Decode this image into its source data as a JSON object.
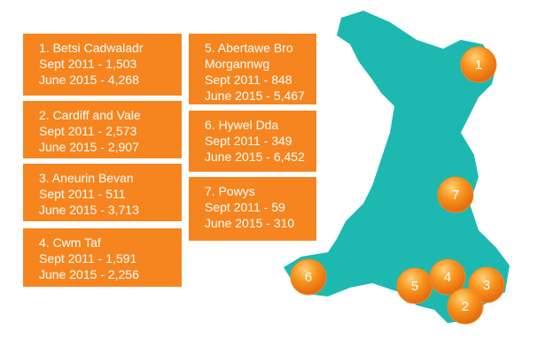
{
  "boxes": [
    {
      "lines": [
        "1. Betsi Cadwaladr",
        "Sept 2011 - 1,503",
        "June 2015 - 4,268"
      ]
    },
    {
      "lines": [
        "2. Cardiff and Vale",
        "Sept 2011 - 2,573",
        "June 2015 - 2,907"
      ]
    },
    {
      "lines": [
        "3. Aneurin Bevan",
        "Sept 2011 - 511",
        "June 2015 - 3,713"
      ]
    },
    {
      "lines": [
        "4. Cwm Taf",
        "Sept 2011 - 1,591",
        "June 2015 - 2,256"
      ]
    },
    {
      "lines": [
        "5. Abertawe Bro Morgannwg",
        "Sept 2011 - 848",
        "June 2015 - 5,467"
      ]
    },
    {
      "lines": [
        "6. Hywel Dda",
        "Sept 2011 - 349",
        "June 2015 - 6,452"
      ]
    },
    {
      "lines": [
        "7. Powys",
        "Sept 2011 - 59",
        "June 2015 - 310"
      ]
    }
  ],
  "markers": [
    {
      "label": "1"
    },
    {
      "label": "2"
    },
    {
      "label": "3"
    },
    {
      "label": "4"
    },
    {
      "label": "5"
    },
    {
      "label": "6"
    },
    {
      "label": "7"
    }
  ]
}
